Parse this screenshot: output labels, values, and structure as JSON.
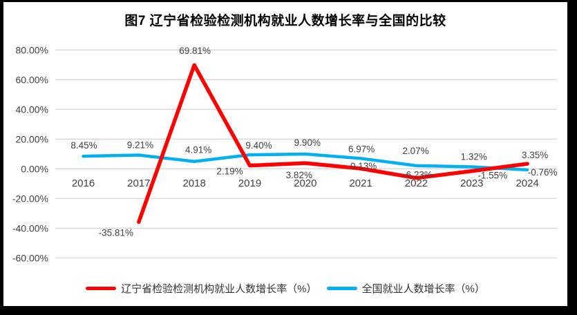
{
  "title": "图7  辽宁省检验检测机构就业人数增长率与全国的比较",
  "colors": {
    "liaoning_line": "#FF0000",
    "national_line": "#00B0F0",
    "gridline": "#D9D9D9",
    "axis_text": "#404040",
    "frame": "#000000"
  },
  "chart_data": {
    "type": "line",
    "title": "图7  辽宁省检验检测机构就业人数增长率与全国的比较",
    "categories": [
      "2016",
      "2017",
      "2018",
      "2019",
      "2020",
      "2021",
      "2022",
      "2023",
      "2024"
    ],
    "series": [
      {
        "name": "辽宁省检验检测机构就业人数增长率（%）",
        "color": "#FF0000",
        "values": [
          null,
          -35.81,
          69.81,
          2.19,
          3.82,
          0.13,
          -6.23,
          -1.55,
          3.35
        ],
        "labels": [
          "",
          "-35.81%",
          "69.81%",
          "2.19%",
          "3.82%",
          "0.13%",
          "-6.23%",
          "-1.55%",
          "3.35%"
        ]
      },
      {
        "name": "全国就业人数增长率（%）",
        "color": "#00B0F0",
        "values": [
          8.45,
          9.21,
          4.91,
          9.4,
          9.9,
          6.97,
          2.07,
          1.32,
          -0.76
        ],
        "labels": [
          "8.45%",
          "9.21%",
          "4.91%",
          "9.40%",
          "9.90%",
          "6.97%",
          "2.07%",
          "1.32%",
          "-0.76%"
        ]
      }
    ],
    "y_ticks": [
      {
        "value": 80,
        "label": "80.00%"
      },
      {
        "value": 60,
        "label": "60.00%"
      },
      {
        "value": 40,
        "label": "40.00%"
      },
      {
        "value": 20,
        "label": "20.00%"
      },
      {
        "value": 0,
        "label": "0.00%"
      },
      {
        "value": -20,
        "label": "-20.00%"
      },
      {
        "value": -40,
        "label": "-40.00%"
      },
      {
        "value": -60,
        "label": "-60.00%"
      }
    ],
    "ylim": [
      -60,
      80
    ],
    "grid": true,
    "legend_position": "bottom"
  }
}
